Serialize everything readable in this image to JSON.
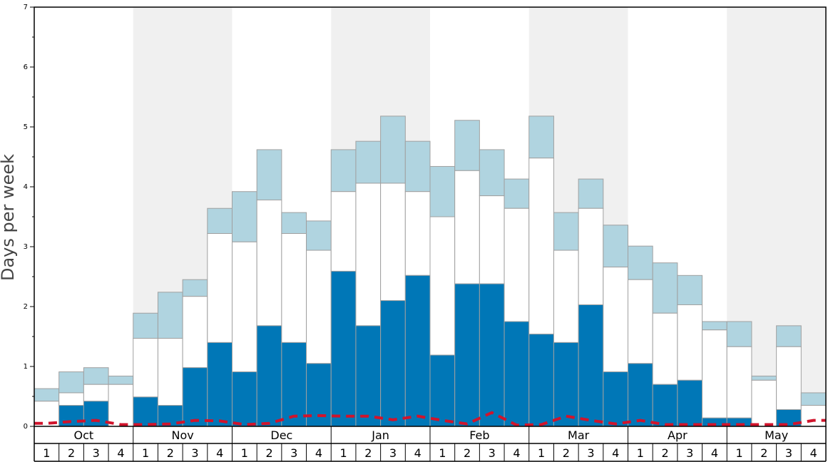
{
  "chart_data": {
    "type": "bar",
    "ylabel": "Days per week",
    "ylim": [
      0,
      7
    ],
    "yticks": [
      "0",
      "1",
      "2",
      "3",
      "4",
      "5",
      "6",
      "7"
    ],
    "months": [
      "Oct",
      "Nov",
      "Dec",
      "Jan",
      "Feb",
      "Mar",
      "Apr",
      "May"
    ],
    "week_labels": [
      "1",
      "2",
      "3",
      "4"
    ],
    "colors": {
      "dark": "#0077b7",
      "white": "#ffffff",
      "light": "#b0d4e0",
      "line": "#d0142c",
      "band": "#f0f0f0"
    },
    "series": [
      {
        "stack": "dark",
        "values": [
          0,
          0.35,
          0.42,
          0,
          0.49,
          0.35,
          0.98,
          1.4,
          0.91,
          1.68,
          1.4,
          1.05,
          2.59,
          1.68,
          2.1,
          2.52,
          1.19,
          2.38,
          2.38,
          1.75,
          1.54,
          1.4,
          2.03,
          0.91,
          1.05,
          0.7,
          0.77,
          0.14,
          0.14,
          0,
          0.28,
          0
        ]
      },
      {
        "stack": "white_top",
        "values": [
          0.42,
          0.56,
          0.7,
          0.7,
          1.47,
          1.47,
          2.17,
          3.22,
          3.08,
          3.78,
          3.22,
          2.94,
          3.92,
          4.06,
          4.06,
          3.92,
          3.5,
          4.27,
          3.85,
          3.64,
          4.48,
          2.94,
          3.64,
          2.66,
          2.45,
          1.89,
          2.03,
          1.61,
          1.33,
          0.77,
          1.33,
          0.35
        ]
      },
      {
        "stack": "light_top",
        "values": [
          0.63,
          0.91,
          0.98,
          0.84,
          1.89,
          2.24,
          2.45,
          3.64,
          3.92,
          4.62,
          3.57,
          3.43,
          4.62,
          4.76,
          5.18,
          4.76,
          4.34,
          5.11,
          4.62,
          4.13,
          5.18,
          3.57,
          4.13,
          3.36,
          3.01,
          2.73,
          2.52,
          1.75,
          1.75,
          0.84,
          1.68,
          0.56
        ]
      },
      {
        "type": "line",
        "style": "dashed",
        "values": [
          0.05,
          0.08,
          0.1,
          0.03,
          0.03,
          0.04,
          0.1,
          0.09,
          0.03,
          0.05,
          0.17,
          0.18,
          0.17,
          0.17,
          0.11,
          0.17,
          0.1,
          0.04,
          0.23,
          0.02,
          0.03,
          0.17,
          0.1,
          0.04,
          0.1,
          0.03,
          0.03,
          0.03,
          0.03,
          0.03,
          0.03,
          0.1
        ]
      }
    ]
  }
}
